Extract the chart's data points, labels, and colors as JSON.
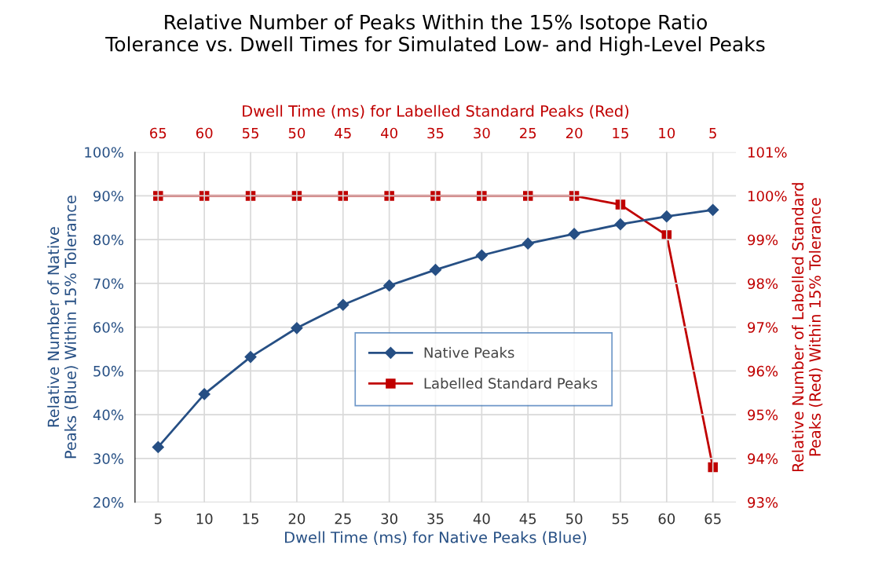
{
  "chart_data": {
    "type": "line",
    "title": "Relative Number of Peaks Within the 15% Isotope Ratio\nTolerance vs. Dwell Times for Simulated Low- and High-Level Peaks",
    "xlabel": "Dwell Time (ms) for Native Peaks (Blue)",
    "x2label": "Dwell Time (ms) for Labelled Standard Peaks (Red)",
    "ylabel": "Relative Number of Native\nPeaks (Blue) Within 15% Tolerance",
    "y2label": "Relative Number of Labelled Standard\nPeaks (Red) Within 15% Tolerance",
    "categories": [
      "5",
      "10",
      "15",
      "20",
      "25",
      "30",
      "35",
      "40",
      "45",
      "50",
      "55",
      "60",
      "65"
    ],
    "x2lim": [
      67.5,
      2.5
    ],
    "x2ticks": [
      65,
      60,
      55,
      50,
      45,
      40,
      35,
      30,
      25,
      20,
      15,
      10,
      5
    ],
    "ylim": [
      20,
      100
    ],
    "yticks": [
      {
        "value": 20,
        "label": "20%"
      },
      {
        "value": 30,
        "label": "30%"
      },
      {
        "value": 40,
        "label": "40%"
      },
      {
        "value": 50,
        "label": "50%"
      },
      {
        "value": 60,
        "label": "60%"
      },
      {
        "value": 70,
        "label": "70%"
      },
      {
        "value": 80,
        "label": "80%"
      },
      {
        "value": 90,
        "label": "90%"
      },
      {
        "value": 100,
        "label": "100%"
      }
    ],
    "y2lim": [
      93,
      101
    ],
    "y2ticks": [
      {
        "value": 93,
        "label": "93%"
      },
      {
        "value": 94,
        "label": "94%"
      },
      {
        "value": 95,
        "label": "95%"
      },
      {
        "value": 96,
        "label": "96%"
      },
      {
        "value": 97,
        "label": "97%"
      },
      {
        "value": 98,
        "label": "98%"
      },
      {
        "value": 99,
        "label": "99%"
      },
      {
        "value": 100,
        "label": "100%"
      },
      {
        "value": 101,
        "label": "101%"
      }
    ],
    "grid": true,
    "legend": "center",
    "series": [
      {
        "name": "Native Peaks",
        "color": "#264f84",
        "marker": "diamond",
        "values": [
          32.6,
          44.7,
          53.2,
          59.8,
          65.1,
          69.5,
          73.1,
          76.4,
          79.1,
          81.3,
          83.5,
          85.3,
          86.8
        ]
      },
      {
        "name": "Labelled Standard Peaks",
        "color": "#c00000",
        "marker": "square",
        "axis": "y2",
        "values": [
          100,
          100,
          100,
          100,
          100,
          100,
          100,
          100,
          100,
          100,
          99.8,
          99.1,
          93.8
        ]
      }
    ]
  }
}
